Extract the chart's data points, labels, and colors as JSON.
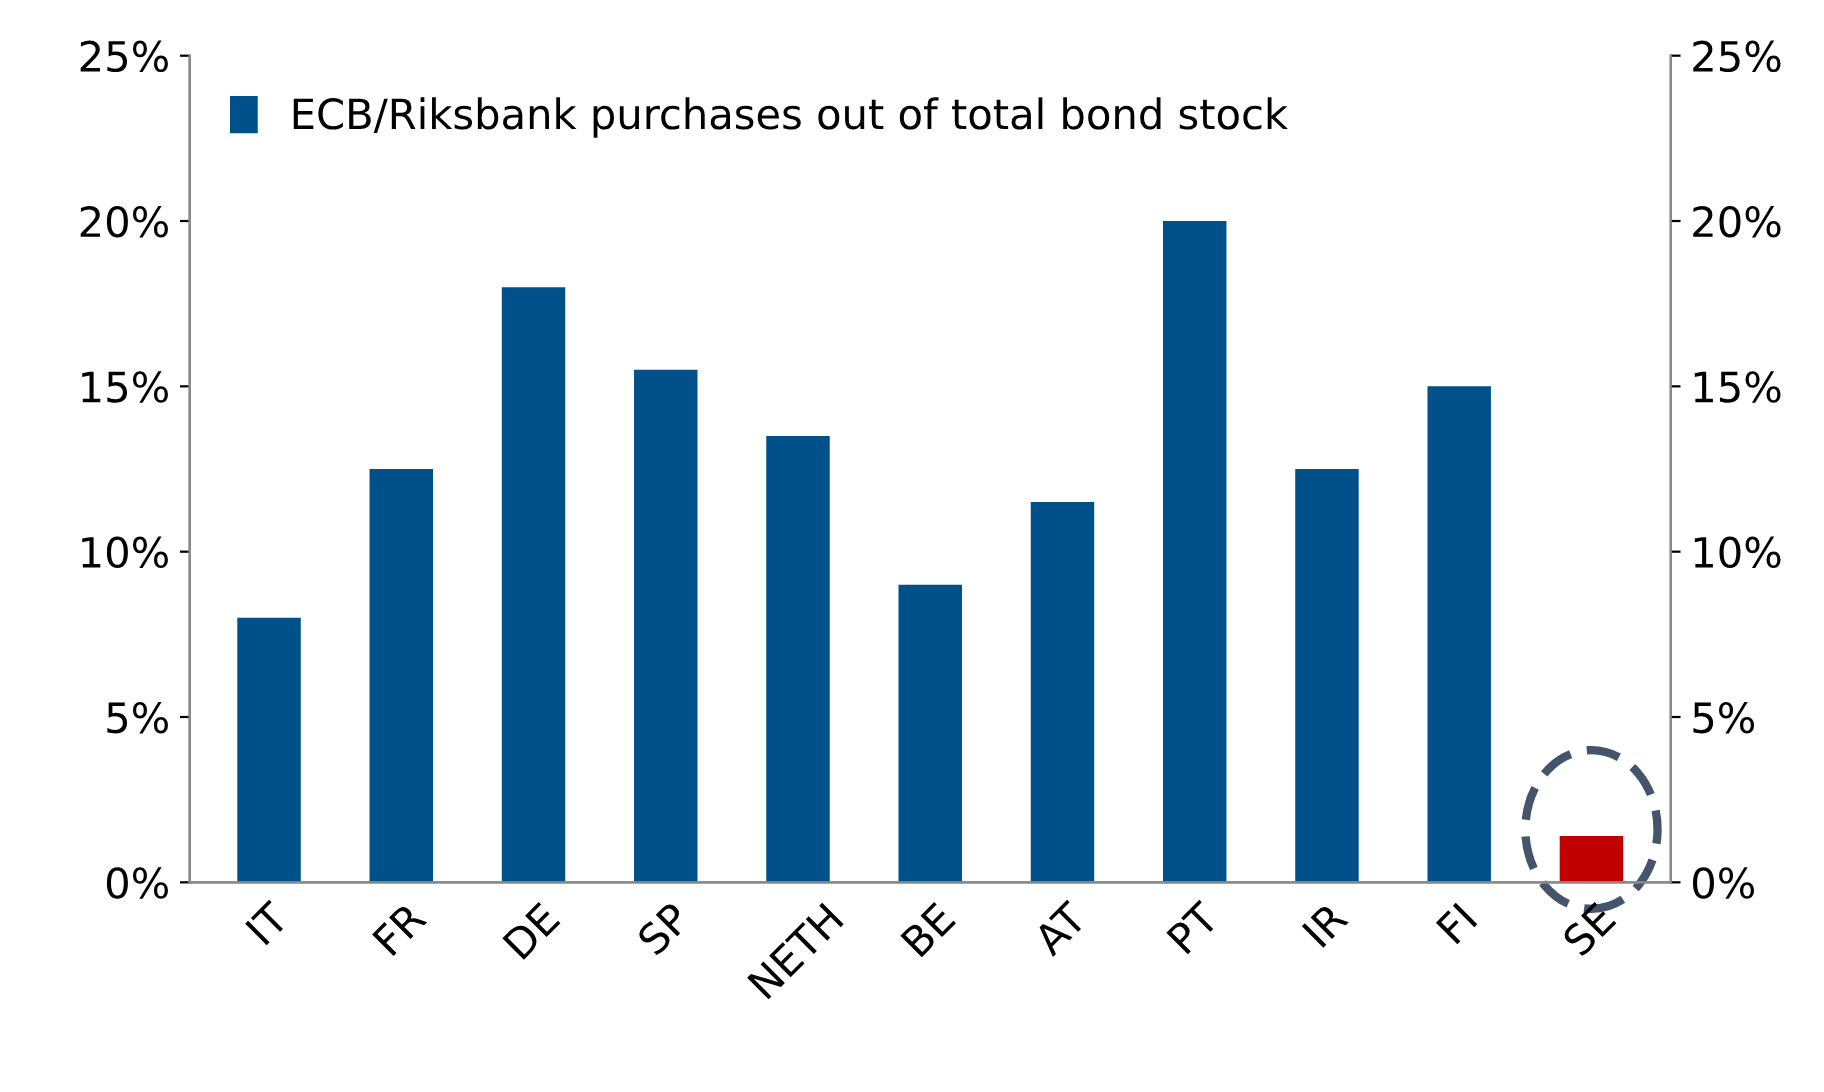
{
  "chart_data": {
    "type": "bar",
    "categories": [
      "IT",
      "FR",
      "DE",
      "SP",
      "NETH",
      "BE",
      "AT",
      "PT",
      "IR",
      "FI",
      "SE"
    ],
    "series": [
      {
        "name": "ECB/Riksbank purchases out of total bond stock",
        "color": "#00508a",
        "colors": [
          "#00508a",
          "#00508a",
          "#00508a",
          "#00508a",
          "#00508a",
          "#00508a",
          "#00508a",
          "#00508a",
          "#00508a",
          "#00508a",
          "#c00000"
        ],
        "values": [
          8,
          12.5,
          18,
          15.5,
          13.5,
          9,
          11.5,
          20,
          12.5,
          15,
          1.4
        ]
      }
    ],
    "ylim": [
      0,
      25
    ],
    "yticks": [
      {
        "value": 0,
        "label": "0%"
      },
      {
        "value": 5,
        "label": "5%"
      },
      {
        "value": 10,
        "label": "10%"
      },
      {
        "value": 15,
        "label": "15%"
      },
      {
        "value": 20,
        "label": "20%"
      },
      {
        "value": 25,
        "label": "25%"
      }
    ],
    "y2lim": [
      0,
      25
    ],
    "y2ticks": [
      {
        "value": 0,
        "label": "0%"
      },
      {
        "value": 5,
        "label": "5%"
      },
      {
        "value": 10,
        "label": "10%"
      },
      {
        "value": 15,
        "label": "15%"
      },
      {
        "value": 20,
        "label": "20%"
      },
      {
        "value": 25,
        "label": "25%"
      }
    ],
    "legend": "top left",
    "grid": false
  }
}
